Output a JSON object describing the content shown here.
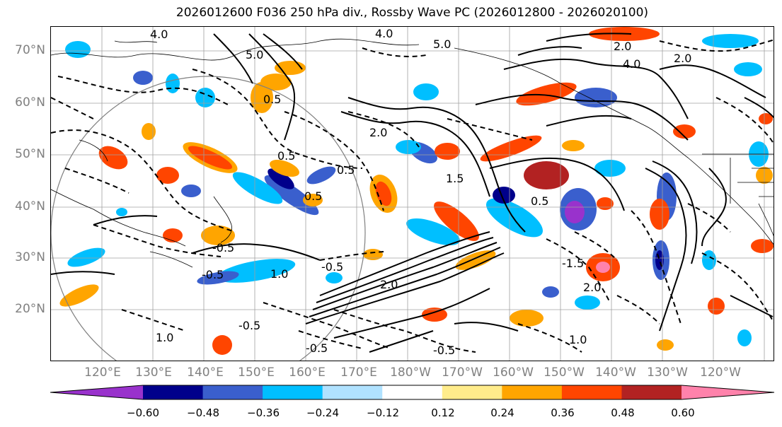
{
  "title": "2026012600 F036 250 hPa div., Rossby Wave PC (2026012800 - 2026020100)",
  "lat_labels": [
    "70°N",
    "60°N",
    "50°N",
    "40°N",
    "30°N",
    "20°N"
  ],
  "lon_labels": [
    "120°E",
    "130°E",
    "140°E",
    "150°E",
    "160°E",
    "170°E",
    "180°W",
    "170°W",
    "160°W",
    "150°W",
    "140°W",
    "130°W",
    "120°W"
  ],
  "colorbar": {
    "colors": [
      "#9932cc",
      "#00008b",
      "#3a5fcd",
      "#00bfff",
      "#b0e2ff",
      "#ffffff",
      "#ffec8b",
      "#ffa500",
      "#ff4500",
      "#b22222",
      "#ff82ab"
    ],
    "tick_labels": [
      "−0.60",
      "−0.48",
      "−0.36",
      "−0.24",
      "−0.12",
      "0.12",
      "0.24",
      "0.36",
      "0.48",
      "0.60"
    ]
  },
  "contour_labels": [
    "4.0",
    "5.0",
    "4.0",
    "5.0",
    "2.0",
    "2.0",
    "4.0",
    "0.5",
    "0.5",
    "2.0",
    "0.5",
    "0.5",
    "-0.5",
    "-0.5",
    "0.5",
    "1.5",
    "-1.5",
    "2.0",
    "1.0",
    "-0.5",
    "-0.5",
    "1.0",
    "-0.5",
    "-0.5",
    "1.0",
    "2.0"
  ]
}
